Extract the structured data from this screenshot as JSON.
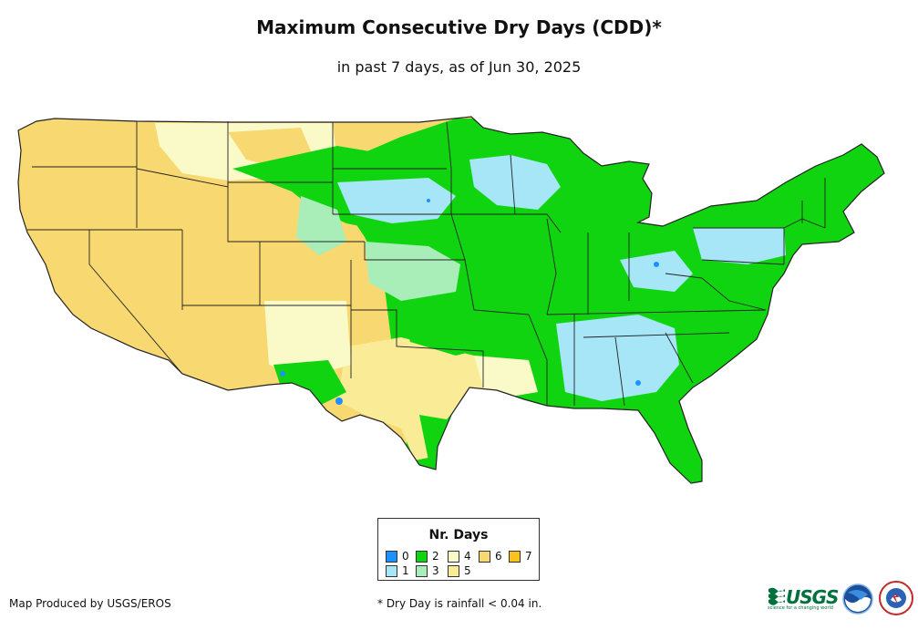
{
  "header": {
    "title": "Maximum Consecutive Dry Days (CDD)*",
    "subtitle": "in past 7 days, as of Jun 30, 2025"
  },
  "legend": {
    "title": "Nr. Days",
    "items": [
      {
        "label": "0",
        "color": "#1e90ff"
      },
      {
        "label": "1",
        "color": "#a6e6f6"
      },
      {
        "label": "2",
        "color": "#11d411"
      },
      {
        "label": "3",
        "color": "#a9eeb9"
      },
      {
        "label": "4",
        "color": "#fafac8"
      },
      {
        "label": "5",
        "color": "#faeb96"
      },
      {
        "label": "6",
        "color": "#f8d870"
      },
      {
        "label": "7",
        "color": "#fbc21d"
      }
    ]
  },
  "footer": {
    "credit": "Map Produced by USGS/EROS",
    "footnote": "* Dry Day is rainfall < 0.04 in."
  },
  "logos": {
    "usgs": {
      "name": "usgs-logo",
      "text": "USGS",
      "tagline": "science for a changing world"
    },
    "noaa": {
      "name": "noaa-logo"
    },
    "nws": {
      "name": "nws-logo"
    }
  }
}
